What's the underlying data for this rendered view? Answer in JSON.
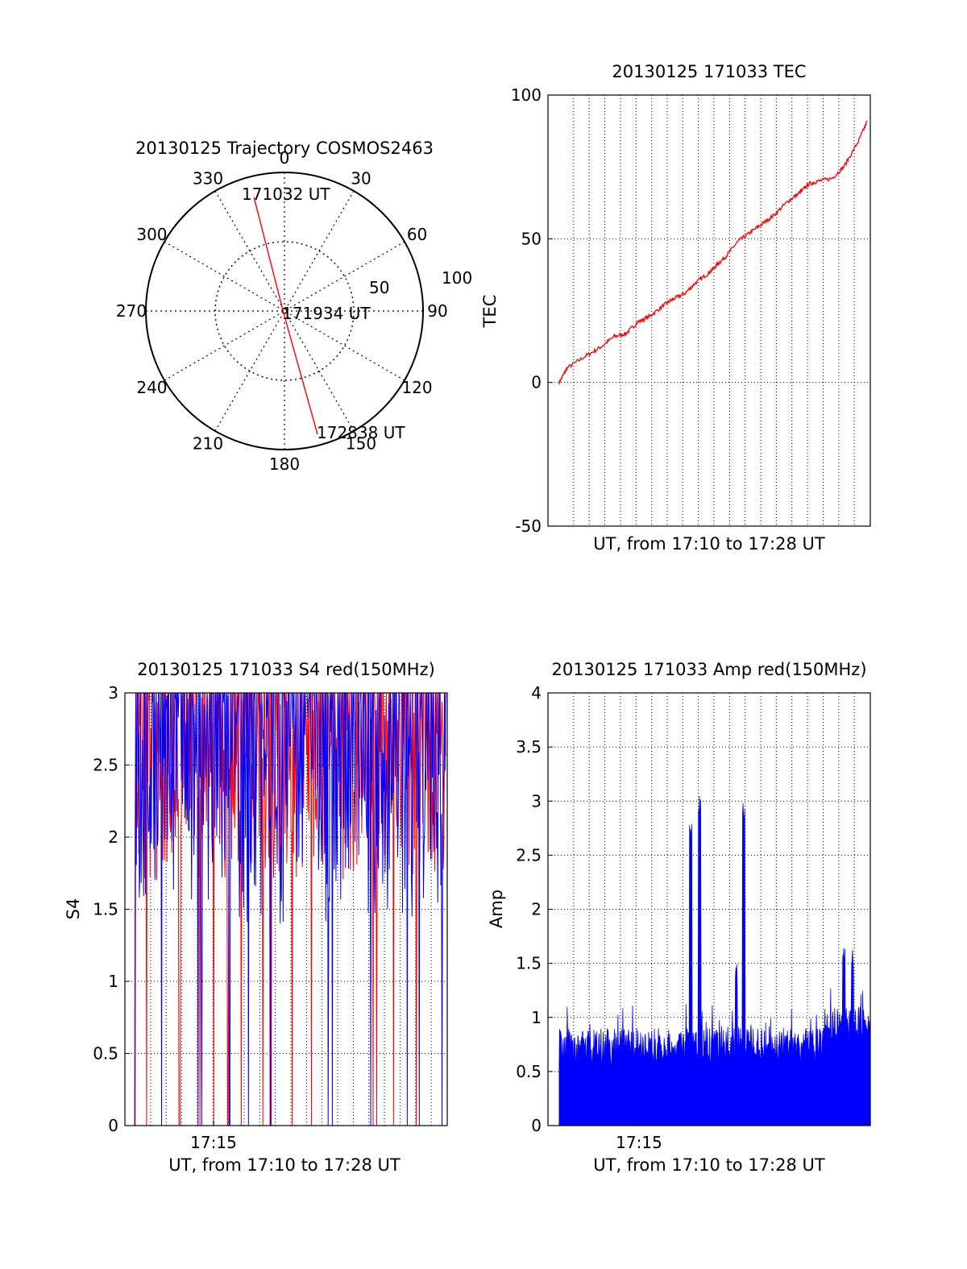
{
  "colors": {
    "red": "#ff0000",
    "blue": "#0000ff",
    "axis": "#000000",
    "grid": "#000000"
  },
  "chart_data": [
    {
      "id": "trajectory",
      "type": "polar",
      "title": "20130125 Trajectory COSMOS2463",
      "angle_labels": [
        "0",
        "30",
        "60",
        "90",
        "120",
        "150",
        "180",
        "210",
        "240",
        "270",
        "300",
        "330"
      ],
      "radial_labels": [
        "50",
        "100"
      ],
      "rlim": [
        0,
        100
      ],
      "grid": true,
      "series": [
        {
          "color": "#ff0000",
          "points": [
            {
              "azimuth": 345,
              "range": 85,
              "label": "171032 UT"
            },
            {
              "azimuth": 270,
              "range": 1,
              "label": "171934 UT"
            },
            {
              "azimuth": 165,
              "range": 92,
              "label": "172838 UT"
            }
          ]
        }
      ]
    },
    {
      "id": "tec",
      "type": "line",
      "title": "20130125 171033 TEC",
      "xlabel": "UT, from 17:10 to 17:28 UT",
      "ylabel": "TEC",
      "xlim": [
        "17:09:55",
        "17:28:10"
      ],
      "ylim": [
        -50,
        100
      ],
      "yticks": [
        -50,
        0,
        50,
        100
      ],
      "grid": true,
      "series": [
        {
          "color": "#ff0000",
          "x": [
            "17:10:33",
            "17:11:00",
            "17:12:00",
            "17:12:50",
            "17:13:40",
            "17:14:20",
            "17:15:00",
            "17:15:40",
            "17:16:30",
            "17:17:00",
            "17:17:40",
            "17:18:20",
            "17:19:00",
            "17:19:30",
            "17:20:00",
            "17:20:40",
            "17:21:20",
            "17:22:00",
            "17:22:40",
            "17:23:30",
            "17:24:10",
            "17:24:40",
            "17:25:10",
            "17:26:00",
            "17:26:40",
            "17:27:30",
            "17:28:00"
          ],
          "y": [
            0,
            5,
            9,
            12,
            16,
            17,
            21,
            23,
            27,
            29,
            31,
            35,
            38,
            41,
            44,
            49,
            52,
            55,
            58,
            63,
            66,
            69,
            70,
            71,
            75,
            84,
            91
          ]
        }
      ]
    },
    {
      "id": "s4",
      "type": "line",
      "title": "20130125 171033 S4 red(150MHz)",
      "xlabel": "UT, from 17:10 to 17:28 UT",
      "ylabel": "S4",
      "xlim": [
        "17:09:55",
        "17:28:10"
      ],
      "ylim": [
        0,
        3
      ],
      "yticks": [
        "0",
        "0.5",
        "1",
        "1.5",
        "2",
        "2.5",
        "3"
      ],
      "xticks": [
        "17:15"
      ],
      "grid": true,
      "series": [
        {
          "color": "#ff0000",
          "trace": "dense noisy signal near 2.0–3.0 with dropouts to 0"
        },
        {
          "color": "#0000ff",
          "trace": "dense noisy signal near 1.5–3.0 with dropouts to 0"
        }
      ]
    },
    {
      "id": "amp",
      "type": "line",
      "title": "20130125 171033 Amp red(150MHz)",
      "xlabel": "UT, from 17:10 to 17:28 UT",
      "ylabel": "Amp",
      "xlim": [
        "17:09:55",
        "17:28:10"
      ],
      "ylim": [
        0,
        4
      ],
      "yticks": [
        "0",
        "0.5",
        "1",
        "1.5",
        "2",
        "2.5",
        "3",
        "3.5",
        "4"
      ],
      "xticks": [
        "17:15"
      ],
      "grid": true,
      "series": [
        {
          "color": "#0000ff",
          "peaks": [
            {
              "x": "17:18:00",
              "y": 2.8
            },
            {
              "x": "17:18:30",
              "y": 3.05
            },
            {
              "x": "17:20:35",
              "y": 1.5
            },
            {
              "x": "17:21:00",
              "y": 3.0
            },
            {
              "x": "17:26:40",
              "y": 1.7
            },
            {
              "x": "17:27:10",
              "y": 1.65
            }
          ],
          "baseline_range": [
            0.5,
            1.0
          ]
        }
      ]
    }
  ]
}
